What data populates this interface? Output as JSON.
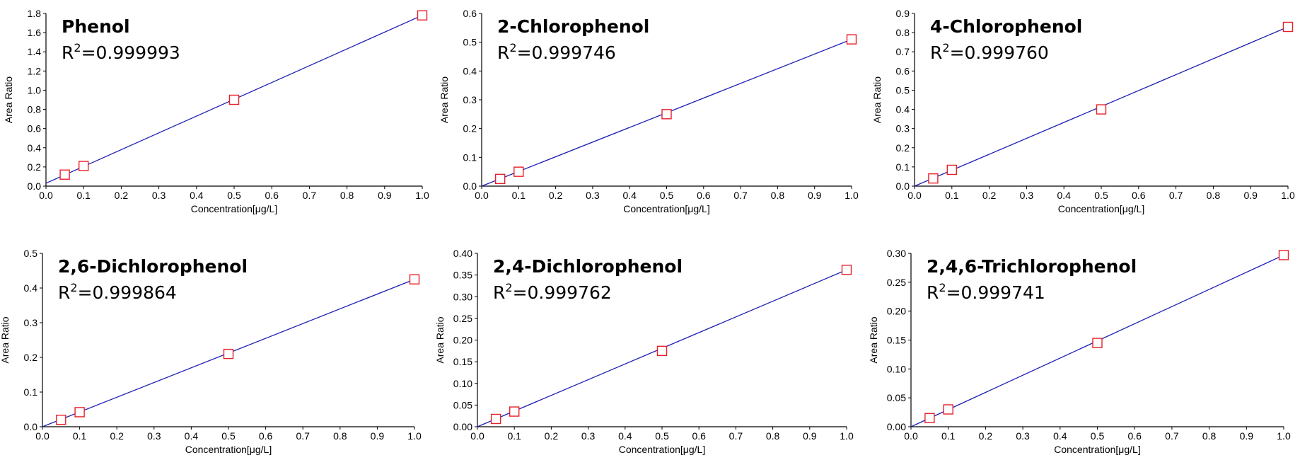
{
  "chart_data": [
    {
      "type": "scatter",
      "title": "Phenol",
      "r2_prefix": "R",
      "r2_sup": "2",
      "r2_value": "=0.999993",
      "xlabel": "Concentration[μg/L]",
      "ylabel": "Area Ratio",
      "xlim": [
        0,
        1.0
      ],
      "ylim": [
        0,
        1.8
      ],
      "x_ticks": [
        "0.0",
        "0.1",
        "0.2",
        "0.3",
        "0.4",
        "0.5",
        "0.6",
        "0.7",
        "0.8",
        "0.9",
        "1.0"
      ],
      "y_ticks": [
        "0.0",
        "0.2",
        "0.4",
        "0.6",
        "0.8",
        "1.0",
        "1.2",
        "1.4",
        "1.6",
        "1.8"
      ],
      "x": [
        0.05,
        0.1,
        0.5,
        1.0
      ],
      "y": [
        0.12,
        0.21,
        0.9,
        1.78
      ],
      "fit_line": [
        [
          0,
          0.03
        ],
        [
          1.0,
          1.78
        ]
      ]
    },
    {
      "type": "scatter",
      "title": "2-Chlorophenol",
      "r2_prefix": "R",
      "r2_sup": "2",
      "r2_value": "=0.999746",
      "xlabel": "Concentration[μg/L]",
      "ylabel": "Area Ratio",
      "xlim": [
        0,
        1.0
      ],
      "ylim": [
        0,
        0.6
      ],
      "x_ticks": [
        "0.0",
        "0.1",
        "0.2",
        "0.3",
        "0.4",
        "0.5",
        "0.6",
        "0.7",
        "0.8",
        "0.9",
        "1.0"
      ],
      "y_ticks": [
        "0.0",
        "0.1",
        "0.2",
        "0.3",
        "0.4",
        "0.5",
        "0.6"
      ],
      "x": [
        0.05,
        0.1,
        0.5,
        1.0
      ],
      "y": [
        0.025,
        0.05,
        0.25,
        0.51
      ],
      "fit_line": [
        [
          0,
          0.0
        ],
        [
          1.0,
          0.51
        ]
      ]
    },
    {
      "type": "scatter",
      "title": "4-Chlorophenol",
      "r2_prefix": "R",
      "r2_sup": "2",
      "r2_value": "=0.999760",
      "xlabel": "Concentration[μg/L]",
      "ylabel": "Area Ratio",
      "xlim": [
        0,
        1.0
      ],
      "ylim": [
        0,
        0.9
      ],
      "x_ticks": [
        "0.0",
        "0.1",
        "0.2",
        "0.3",
        "0.4",
        "0.5",
        "0.6",
        "0.7",
        "0.8",
        "0.9",
        "1.0"
      ],
      "y_ticks": [
        "0.0",
        "0.1",
        "0.2",
        "0.3",
        "0.4",
        "0.5",
        "0.6",
        "0.7",
        "0.8",
        "0.9"
      ],
      "x": [
        0.05,
        0.1,
        0.5,
        1.0
      ],
      "y": [
        0.04,
        0.085,
        0.4,
        0.83
      ],
      "fit_line": [
        [
          0,
          0.0
        ],
        [
          1.0,
          0.83
        ]
      ]
    },
    {
      "type": "scatter",
      "title": "2,6-Dichlorophenol",
      "r2_prefix": "R",
      "r2_sup": "2",
      "r2_value": "=0.999864",
      "xlabel": "Concentration[μg/L]",
      "ylabel": "Area Ratio",
      "xlim": [
        0,
        1.0
      ],
      "ylim": [
        0,
        0.5
      ],
      "x_ticks": [
        "0.0",
        "0.1",
        "0.2",
        "0.3",
        "0.4",
        "0.5",
        "0.6",
        "0.7",
        "0.8",
        "0.9",
        "1.0"
      ],
      "y_ticks": [
        "0.0",
        "0.1",
        "0.2",
        "0.3",
        "0.4",
        "0.5"
      ],
      "x": [
        0.05,
        0.1,
        0.5,
        1.0
      ],
      "y": [
        0.02,
        0.042,
        0.21,
        0.425
      ],
      "fit_line": [
        [
          0,
          0.0
        ],
        [
          1.0,
          0.425
        ]
      ]
    },
    {
      "type": "scatter",
      "title": "2,4-Dichlorophenol",
      "r2_prefix": "R",
      "r2_sup": "2",
      "r2_value": "=0.999762",
      "xlabel": "Concentration[μg/L]",
      "ylabel": "Area Ratio",
      "xlim": [
        0,
        1.0
      ],
      "ylim": [
        0,
        0.4
      ],
      "x_ticks": [
        "0.0",
        "0.1",
        "0.2",
        "0.3",
        "0.4",
        "0.5",
        "0.6",
        "0.7",
        "0.8",
        "0.9",
        "1.0"
      ],
      "y_ticks": [
        "0.00",
        "0.05",
        "0.10",
        "0.15",
        "0.20",
        "0.25",
        "0.30",
        "0.35",
        "0.40"
      ],
      "x": [
        0.05,
        0.1,
        0.5,
        1.0
      ],
      "y": [
        0.018,
        0.035,
        0.175,
        0.362
      ],
      "fit_line": [
        [
          0,
          0.0
        ],
        [
          1.0,
          0.362
        ]
      ]
    },
    {
      "type": "scatter",
      "title": "2,4,6-Trichlorophenol",
      "r2_prefix": "R",
      "r2_sup": "2",
      "r2_value": "=0.999741",
      "xlabel": "Concentration[μg/L]",
      "ylabel": "Area Ratio",
      "xlim": [
        0,
        1.0
      ],
      "ylim": [
        0,
        0.3
      ],
      "x_ticks": [
        "0.0",
        "0.1",
        "0.2",
        "0.3",
        "0.4",
        "0.5",
        "0.6",
        "0.7",
        "0.8",
        "0.9",
        "1.0"
      ],
      "y_ticks": [
        "0.00",
        "0.05",
        "0.10",
        "0.15",
        "0.20",
        "0.25",
        "0.30"
      ],
      "x": [
        0.05,
        0.1,
        0.5,
        1.0
      ],
      "y": [
        0.015,
        0.03,
        0.145,
        0.297
      ],
      "fit_line": [
        [
          0,
          0.0
        ],
        [
          1.0,
          0.297
        ]
      ]
    }
  ],
  "colors": {
    "line": "#1f1fb4",
    "marker": "#e8202a",
    "axis": "#000000"
  }
}
